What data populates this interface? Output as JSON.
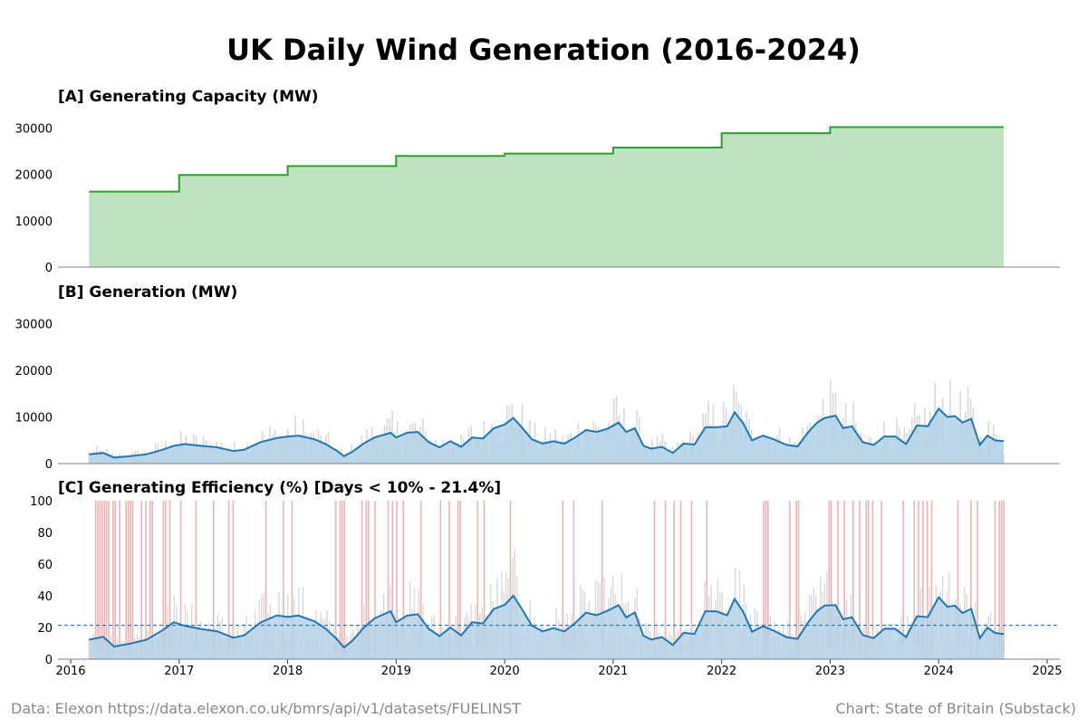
{
  "title": "UK Daily Wind Generation (2016-2024)",
  "footer": {
    "source": "Data: Elexon https://data.elexon.co.uk/bmrs/api/v1/datasets/FUELINST",
    "credit": "Chart: State of Britain (Substack)"
  },
  "colors": {
    "capacity_line": "#2ca02c",
    "capacity_fill": "#bfe3c0",
    "daily_bars": "#d9d9d9",
    "rolling_line": "#1f77b4",
    "rolling_fill": "#b3d1e7",
    "low_days": "#e06666",
    "mean_line": "#1f77b4",
    "axis": "#808080"
  },
  "chart_data": [
    {
      "id": "A",
      "type": "area",
      "title": "[A] Generating Capacity (MW)",
      "ylim": [
        0,
        34000
      ],
      "yticks": [
        0,
        10000,
        20000,
        30000
      ],
      "x_start": 2016.17,
      "x_end": 2024.6,
      "series": [
        {
          "steps": [
            {
              "x": 2016.17,
              "y": 16300
            },
            {
              "x": 2017.0,
              "y": 19900
            },
            {
              "x": 2018.0,
              "y": 21800
            },
            {
              "x": 2019.0,
              "y": 24000
            },
            {
              "x": 2020.0,
              "y": 24500
            },
            {
              "x": 2021.0,
              "y": 25800
            },
            {
              "x": 2022.0,
              "y": 28900
            },
            {
              "x": 2023.0,
              "y": 30200
            }
          ]
        }
      ]
    },
    {
      "id": "B",
      "type": "area",
      "title": "[B] Generation (MW)",
      "ylim": [
        0,
        34000
      ],
      "yticks": [
        0,
        10000,
        20000,
        30000
      ],
      "series": [
        {
          "points": [
            [
              2016.17,
              2000
            ],
            [
              2016.3,
              2300
            ],
            [
              2016.4,
              1300
            ],
            [
              2016.55,
              1600
            ],
            [
              2016.7,
              2000
            ],
            [
              2016.85,
              3000
            ],
            [
              2016.95,
              3800
            ],
            [
              2017.05,
              4200
            ],
            [
              2017.2,
              3800
            ],
            [
              2017.35,
              3500
            ],
            [
              2017.5,
              2700
            ],
            [
              2017.6,
              3000
            ],
            [
              2017.75,
              4600
            ],
            [
              2017.9,
              5500
            ],
            [
              2018.0,
              5800
            ],
            [
              2018.1,
              6000
            ],
            [
              2018.25,
              5200
            ],
            [
              2018.35,
              4200
            ],
            [
              2018.45,
              2800
            ],
            [
              2018.52,
              1600
            ],
            [
              2018.6,
              2600
            ],
            [
              2018.7,
              4300
            ],
            [
              2018.8,
              5600
            ],
            [
              2018.95,
              6600
            ],
            [
              2019.0,
              5600
            ],
            [
              2019.1,
              6600
            ],
            [
              2019.2,
              6800
            ],
            [
              2019.3,
              4600
            ],
            [
              2019.4,
              3500
            ],
            [
              2019.5,
              4800
            ],
            [
              2019.6,
              3600
            ],
            [
              2019.7,
              5600
            ],
            [
              2019.8,
              5400
            ],
            [
              2019.9,
              7600
            ],
            [
              2020.0,
              8400
            ],
            [
              2020.08,
              9800
            ],
            [
              2020.15,
              8000
            ],
            [
              2020.25,
              5200
            ],
            [
              2020.35,
              4300
            ],
            [
              2020.45,
              4800
            ],
            [
              2020.55,
              4300
            ],
            [
              2020.65,
              5600
            ],
            [
              2020.75,
              7200
            ],
            [
              2020.85,
              6800
            ],
            [
              2020.95,
              7500
            ],
            [
              2021.05,
              8800
            ],
            [
              2021.12,
              6800
            ],
            [
              2021.2,
              7600
            ],
            [
              2021.28,
              3800
            ],
            [
              2021.35,
              3200
            ],
            [
              2021.45,
              3600
            ],
            [
              2021.55,
              2300
            ],
            [
              2021.65,
              4300
            ],
            [
              2021.75,
              4100
            ],
            [
              2021.85,
              7800
            ],
            [
              2021.95,
              7800
            ],
            [
              2022.05,
              8000
            ],
            [
              2022.12,
              11000
            ],
            [
              2022.2,
              8600
            ],
            [
              2022.28,
              5000
            ],
            [
              2022.38,
              6000
            ],
            [
              2022.48,
              5200
            ],
            [
              2022.6,
              4000
            ],
            [
              2022.7,
              3700
            ],
            [
              2022.8,
              6800
            ],
            [
              2022.88,
              8800
            ],
            [
              2022.95,
              9800
            ],
            [
              2023.05,
              10300
            ],
            [
              2023.12,
              7600
            ],
            [
              2023.2,
              8000
            ],
            [
              2023.3,
              4600
            ],
            [
              2023.4,
              4000
            ],
            [
              2023.5,
              5800
            ],
            [
              2023.6,
              5800
            ],
            [
              2023.7,
              4200
            ],
            [
              2023.8,
              8200
            ],
            [
              2023.9,
              8000
            ],
            [
              2024.0,
              11800
            ],
            [
              2024.08,
              10000
            ],
            [
              2024.15,
              10200
            ],
            [
              2024.22,
              8800
            ],
            [
              2024.3,
              9600
            ],
            [
              2024.38,
              4000
            ],
            [
              2024.45,
              6000
            ],
            [
              2024.52,
              5000
            ],
            [
              2024.6,
              4800
            ]
          ]
        }
      ]
    },
    {
      "id": "C",
      "type": "area",
      "title": "[C] Generating Efficiency (%) [Days < 10% -  21.4%]",
      "ylim": [
        0,
        100
      ],
      "yticks": [
        0,
        20,
        40,
        60,
        80,
        100
      ],
      "mean": 21.4,
      "x_ticks": [
        "2016",
        "2017",
        "2018",
        "2019",
        "2020",
        "2021",
        "2022",
        "2023",
        "2024",
        "2025"
      ],
      "xlim": [
        2016,
        2025
      ]
    }
  ]
}
